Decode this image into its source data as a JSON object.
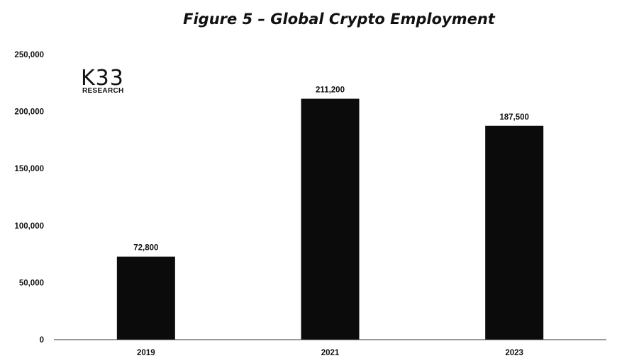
{
  "chart_data": {
    "type": "bar",
    "title": "Figure 5 – Global Crypto Employment",
    "categories": [
      "2019",
      "2021",
      "2023"
    ],
    "values": [
      72800,
      211200,
      187500
    ],
    "data_labels": [
      "72,800",
      "211,200",
      "187,500"
    ],
    "y_ticks": [
      {
        "value": 0,
        "label": "0"
      },
      {
        "value": 50000,
        "label": "50,000"
      },
      {
        "value": 100000,
        "label": "100,000"
      },
      {
        "value": 150000,
        "label": "150,000"
      },
      {
        "value": 200000,
        "label": "200,000"
      },
      {
        "value": 250000,
        "label": "250,000"
      }
    ],
    "ylim": [
      0,
      250000
    ],
    "grid": false,
    "bar_color": "#0b0b0b"
  },
  "logo": {
    "main": "K33",
    "sub": "RESEARCH"
  }
}
